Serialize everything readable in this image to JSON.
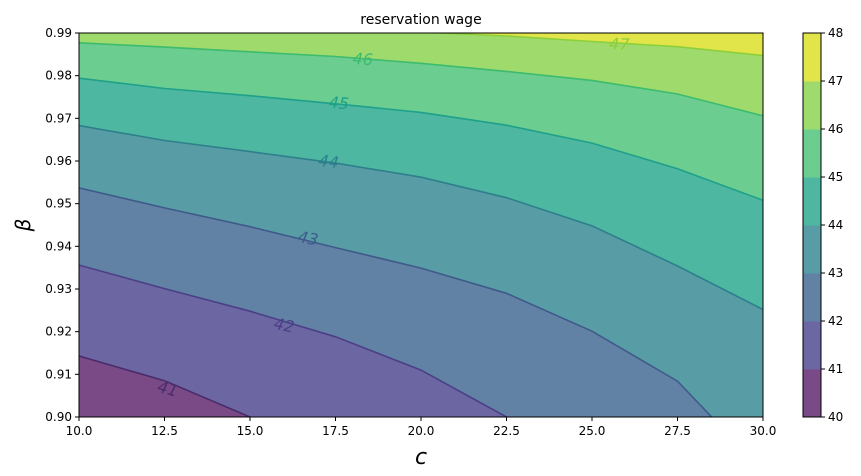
{
  "chart_data": {
    "type": "contour",
    "title": "reservation wage",
    "xlabel": "c",
    "ylabel": "β",
    "xlim": [
      10.0,
      30.0
    ],
    "ylim": [
      0.9,
      0.99
    ],
    "x_ticks": [
      "10.0",
      "12.5",
      "15.0",
      "17.5",
      "20.0",
      "22.5",
      "25.0",
      "27.5",
      "30.0"
    ],
    "y_ticks": [
      "0.90",
      "0.91",
      "0.92",
      "0.93",
      "0.94",
      "0.95",
      "0.96",
      "0.97",
      "0.98",
      "0.99"
    ],
    "colorbar": {
      "range": [
        40,
        48
      ],
      "ticks": [
        "40",
        "41",
        "42",
        "43",
        "44",
        "45",
        "46",
        "47",
        "48"
      ],
      "band_colors": [
        "#7a4a87",
        "#6c67a3",
        "#6282a5",
        "#589da6",
        "#4db7a1",
        "#6bcd8f",
        "#9fdb6c",
        "#e1e54a"
      ]
    },
    "contour_levels": [
      {
        "level": 41,
        "label": "41",
        "points": [
          [
            10.0,
            0.9143
          ],
          [
            12.5,
            0.9085
          ],
          [
            15.0,
            0.9
          ]
        ]
      },
      {
        "level": 42,
        "label": "42",
        "points": [
          [
            10.0,
            0.9356
          ],
          [
            12.5,
            0.9301
          ],
          [
            15.0,
            0.9248
          ],
          [
            17.5,
            0.9188
          ],
          [
            20.0,
            0.911
          ],
          [
            22.5,
            0.9
          ]
        ]
      },
      {
        "level": 43,
        "label": "43",
        "points": [
          [
            10.0,
            0.9537
          ],
          [
            12.5,
            0.949
          ],
          [
            15.0,
            0.9446
          ],
          [
            17.5,
            0.9397
          ],
          [
            20.0,
            0.9349
          ],
          [
            22.5,
            0.929
          ],
          [
            25.0,
            0.9201
          ],
          [
            27.5,
            0.9084
          ],
          [
            28.5,
            0.9
          ]
        ]
      },
      {
        "level": 44,
        "label": "44",
        "points": [
          [
            10.0,
            0.9683
          ],
          [
            12.5,
            0.9648
          ],
          [
            15.0,
            0.9622
          ],
          [
            17.5,
            0.9595
          ],
          [
            20.0,
            0.9562
          ],
          [
            22.5,
            0.9514
          ],
          [
            25.0,
            0.9448
          ],
          [
            27.5,
            0.9354
          ],
          [
            30.0,
            0.9252
          ]
        ]
      },
      {
        "level": 45,
        "label": "45",
        "points": [
          [
            10.0,
            0.9794
          ],
          [
            12.5,
            0.977
          ],
          [
            15.0,
            0.9753
          ],
          [
            17.5,
            0.9734
          ],
          [
            20.0,
            0.9714
          ],
          [
            22.5,
            0.9684
          ],
          [
            25.0,
            0.9642
          ],
          [
            27.5,
            0.9582
          ],
          [
            30.0,
            0.9508
          ]
        ]
      },
      {
        "level": 46,
        "label": "46",
        "points": [
          [
            10.0,
            0.9877
          ],
          [
            12.5,
            0.9867
          ],
          [
            15.0,
            0.9856
          ],
          [
            17.5,
            0.9845
          ],
          [
            20.0,
            0.9829
          ],
          [
            22.5,
            0.981
          ],
          [
            25.0,
            0.9789
          ],
          [
            27.5,
            0.9757
          ],
          [
            30.0,
            0.9706
          ]
        ]
      },
      {
        "level": 47,
        "label": "47",
        "points": [
          [
            20.5,
            0.99
          ],
          [
            22.5,
            0.9893
          ],
          [
            25.0,
            0.988
          ],
          [
            27.5,
            0.9868
          ],
          [
            30.0,
            0.9847
          ]
        ]
      }
    ],
    "contour_labels": [
      {
        "text": "41",
        "x": 12.6,
        "y": 0.9067,
        "angle": 15
      },
      {
        "text": "42",
        "x": 16.0,
        "y": 0.9216,
        "angle": 12
      },
      {
        "text": "43",
        "x": 16.7,
        "y": 0.942,
        "angle": 11
      },
      {
        "text": "44",
        "x": 17.3,
        "y": 0.96,
        "angle": 7
      },
      {
        "text": "45",
        "x": 17.6,
        "y": 0.9737,
        "angle": 5
      },
      {
        "text": "46",
        "x": 18.3,
        "y": 0.984,
        "angle": 4
      },
      {
        "text": "47",
        "x": 25.8,
        "y": 0.9875,
        "angle": 3
      }
    ],
    "grid": false
  }
}
